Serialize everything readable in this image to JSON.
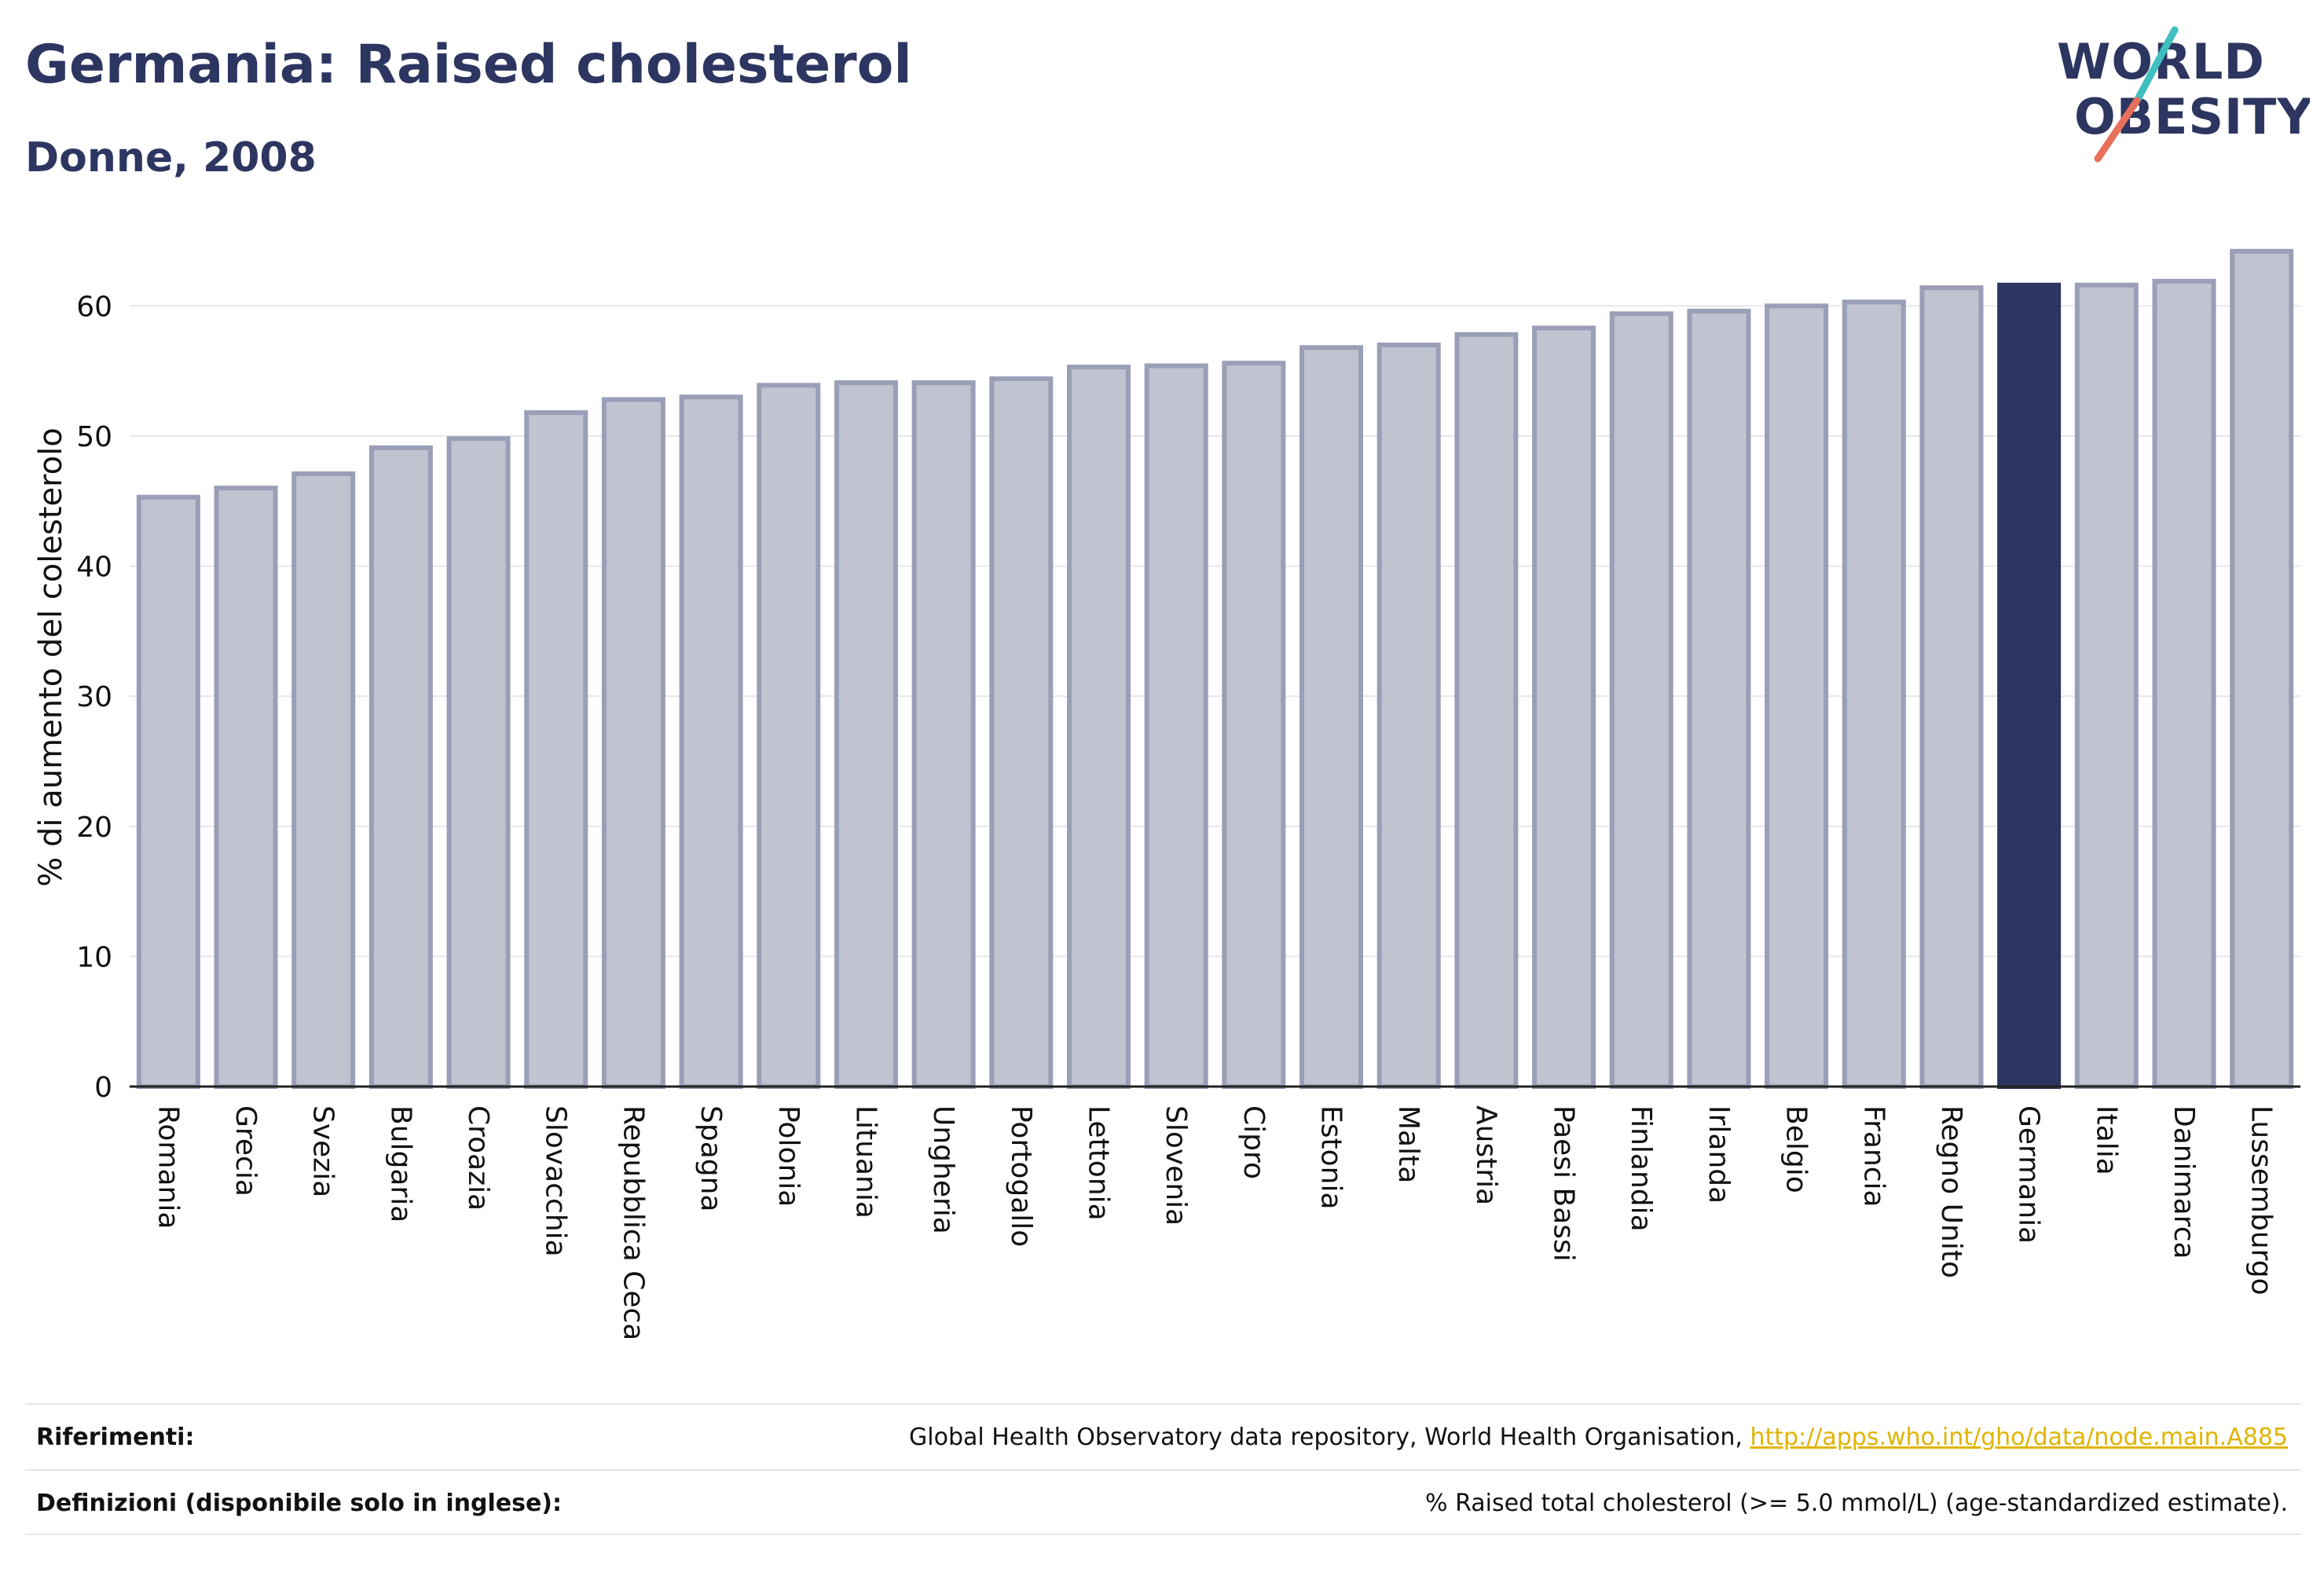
{
  "header": {
    "title": "Germania: Raised cholesterol",
    "subtitle": "Donne, 2008"
  },
  "logo": {
    "line1": "WORLD",
    "line2": "OBESITY",
    "accent_teal": "#3fbfbf",
    "accent_coral": "#e8705a",
    "text_color": "#2d3561"
  },
  "colors": {
    "bar": "#c0c3d0",
    "bar_border": "#9a9eb6",
    "highlight": "#2d3561",
    "grid": "#e6e7ec",
    "axis": "#222222"
  },
  "chart_data": {
    "type": "bar",
    "ylabel": "% di aumento del colesterolo",
    "xlabel": "",
    "ylim": [
      0,
      66
    ],
    "yticks": [
      0,
      10,
      20,
      30,
      40,
      50,
      60
    ],
    "highlight": "Germania",
    "categories": [
      "Romania",
      "Grecia",
      "Svezia",
      "Bulgaria",
      "Croazia",
      "Slovacchia",
      "Repubblica Ceca",
      "Spagna",
      "Polonia",
      "Lituania",
      "Ungheria",
      "Portogallo",
      "Lettonia",
      "Slovenia",
      "Cipro",
      "Estonia",
      "Malta",
      "Austria",
      "Paesi Bassi",
      "Finlandia",
      "Irlanda",
      "Belgio",
      "Francia",
      "Regno Unito",
      "Germania",
      "Italia",
      "Danimarca",
      "Lussemburgo"
    ],
    "values": [
      45.3,
      46.0,
      47.1,
      49.1,
      49.8,
      51.8,
      52.8,
      53.0,
      53.9,
      54.1,
      54.1,
      54.4,
      55.3,
      55.4,
      55.6,
      56.8,
      57.0,
      57.8,
      58.3,
      59.4,
      59.6,
      60.0,
      60.3,
      61.4,
      61.6,
      61.6,
      61.9,
      64.2
    ]
  },
  "footer": {
    "references_label": "Riferimenti:",
    "references_text": "Global Health Observatory data repository, World Health Organisation, ",
    "references_link": "http://apps.who.int/gho/data/node.main.A885",
    "definitions_label": "Definizioni (disponibile solo in inglese):",
    "definitions_text": "% Raised total cholesterol (>= 5.0 mmol/L) (age-standardized estimate)."
  }
}
